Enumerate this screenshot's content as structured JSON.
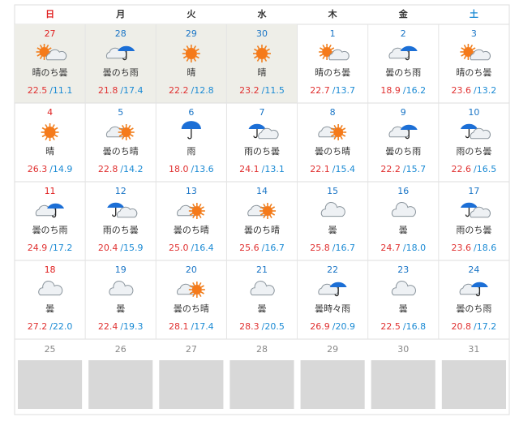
{
  "weekdays": [
    "日",
    "月",
    "火",
    "水",
    "木",
    "金",
    "土"
  ],
  "weeks": [
    [
      {
        "date": 27,
        "weather": "晴のち曇",
        "high": "22.5",
        "low": "/11.1"
      },
      {
        "date": 28,
        "weather": "曇のち雨",
        "high": "21.8",
        "low": "/17.4"
      },
      {
        "date": 29,
        "weather": "晴",
        "high": "22.2",
        "low": "/12.8"
      },
      {
        "date": 30,
        "weather": "晴",
        "high": "23.2",
        "low": "/11.5"
      },
      {
        "date": 1,
        "weather": "晴のち曇",
        "high": "22.7",
        "low": "/13.7"
      },
      {
        "date": 2,
        "weather": "曇のち雨",
        "high": "18.9",
        "low": "/16.2"
      },
      {
        "date": 3,
        "weather": "晴のち曇",
        "high": "23.6",
        "low": "/13.2"
      }
    ],
    [
      {
        "date": 4,
        "weather": "晴",
        "high": "26.3",
        "low": "/14.9"
      },
      {
        "date": 5,
        "weather": "曇のち晴",
        "high": "22.8",
        "low": "/14.2"
      },
      {
        "date": 6,
        "weather": "雨",
        "high": "18.0",
        "low": "/13.6"
      },
      {
        "date": 7,
        "weather": "雨のち曇",
        "high": "24.1",
        "low": "/13.1"
      },
      {
        "date": 8,
        "weather": "曇のち晴",
        "high": "22.1",
        "low": "/15.4"
      },
      {
        "date": 9,
        "weather": "曇のち雨",
        "high": "22.2",
        "low": "/15.7"
      },
      {
        "date": 10,
        "weather": "雨のち曇",
        "high": "22.6",
        "low": "/16.5"
      }
    ],
    [
      {
        "date": 11,
        "weather": "曇のち雨",
        "high": "24.9",
        "low": "/17.2"
      },
      {
        "date": 12,
        "weather": "雨のち曇",
        "high": "20.4",
        "low": "/15.9"
      },
      {
        "date": 13,
        "weather": "曇のち晴",
        "high": "25.0",
        "low": "/16.4"
      },
      {
        "date": 14,
        "weather": "曇のち晴",
        "high": "25.6",
        "low": "/16.7"
      },
      {
        "date": 15,
        "weather": "曇",
        "high": "25.8",
        "low": "/16.7"
      },
      {
        "date": 16,
        "weather": "曇",
        "high": "24.7",
        "low": "/18.0"
      },
      {
        "date": 17,
        "weather": "雨のち曇",
        "high": "23.6",
        "low": "/18.6"
      }
    ],
    [
      {
        "date": 18,
        "weather": "曇",
        "high": "27.2",
        "low": "/22.0"
      },
      {
        "date": 19,
        "weather": "曇",
        "high": "22.4",
        "low": "/19.3"
      },
      {
        "date": 20,
        "weather": "曇のち晴",
        "high": "28.1",
        "low": "/17.4"
      },
      {
        "date": 21,
        "weather": "曇",
        "high": "28.3",
        "low": "/20.5"
      },
      {
        "date": 22,
        "weather": "曇時々雨",
        "high": "26.9",
        "low": "/20.9"
      },
      {
        "date": 23,
        "weather": "曇",
        "high": "22.5",
        "low": "/16.8"
      },
      {
        "date": 24,
        "weather": "曇のち雨",
        "high": "20.8",
        "low": "/17.2"
      }
    ]
  ],
  "last_week": [
    25,
    26,
    27,
    28,
    29,
    30,
    31
  ]
}
